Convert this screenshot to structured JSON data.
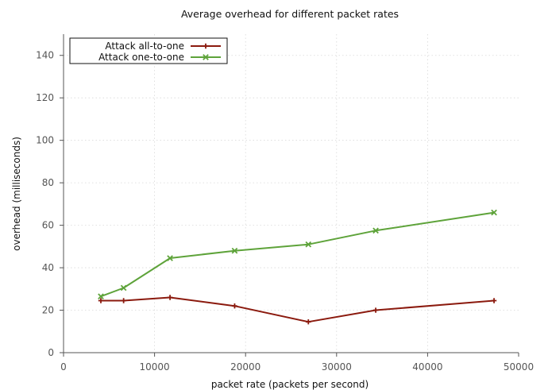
{
  "chart_data": {
    "type": "line",
    "title": "Average overhead for different packet rates",
    "xlabel": "packet rate (packets per second)",
    "ylabel": "overhead (milliseconds)",
    "xlim": [
      0,
      50000
    ],
    "ylim": [
      0,
      150
    ],
    "xticks": [
      0,
      10000,
      20000,
      30000,
      40000,
      50000
    ],
    "yticks": [
      0,
      20,
      40,
      60,
      80,
      100,
      120,
      140
    ],
    "grid": true,
    "legend_position": "top-left",
    "series": [
      {
        "name": "Attack all-to-one",
        "color": "#8b1a0e",
        "marker": "plus",
        "x": [
          4100,
          6600,
          11700,
          18800,
          26900,
          34300,
          47300
        ],
        "y": [
          24.5,
          24.5,
          26.0,
          22.0,
          14.5,
          20.0,
          24.5
        ]
      },
      {
        "name": "Attack one-to-one",
        "color": "#5ea33a",
        "marker": "cross",
        "x": [
          4100,
          6600,
          11700,
          18800,
          26900,
          34300,
          47300
        ],
        "y": [
          26.5,
          30.5,
          44.5,
          48.0,
          51.0,
          57.5,
          66.0
        ]
      }
    ]
  }
}
